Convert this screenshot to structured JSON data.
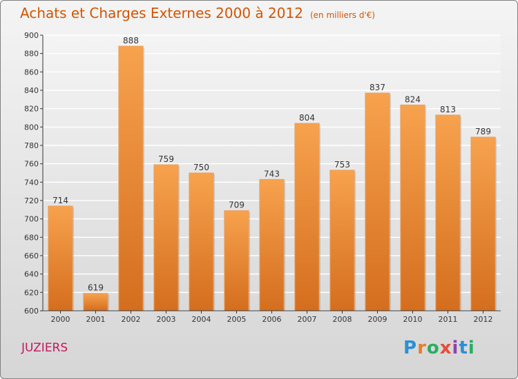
{
  "header": {
    "title": "Achats et Charges Externes 2000 à 2012",
    "unit": "(en milliers d'€)"
  },
  "footer": {
    "commune": "JUZIERS",
    "brand_letters": [
      "P",
      "r",
      "o",
      "x",
      "i",
      "t",
      "i"
    ],
    "brand_colors": [
      "#2b8fd6",
      "#e67e22",
      "#27ae60",
      "#e74c3c",
      "#8e44ad",
      "#2b8fd6",
      "#27ae60"
    ]
  },
  "colors": {
    "title": "#d35400",
    "commune": "#c2185b",
    "bar_light": "#f7a24e",
    "bar_dark": "#d46e1e"
  },
  "chart_data": {
    "type": "bar",
    "categories": [
      "2000",
      "2001",
      "2002",
      "2003",
      "2004",
      "2005",
      "2006",
      "2007",
      "2008",
      "2009",
      "2010",
      "2011",
      "2012"
    ],
    "values": [
      714,
      619,
      888,
      759,
      750,
      709,
      743,
      804,
      753,
      837,
      824,
      813,
      789
    ],
    "yticks": [
      600,
      620,
      640,
      660,
      680,
      700,
      720,
      740,
      760,
      780,
      800,
      820,
      840,
      860,
      880,
      900
    ],
    "ylim": [
      600,
      900
    ],
    "title": "Achats et Charges Externes 2000 à 2012",
    "xlabel": "",
    "ylabel": "",
    "grid": true
  }
}
